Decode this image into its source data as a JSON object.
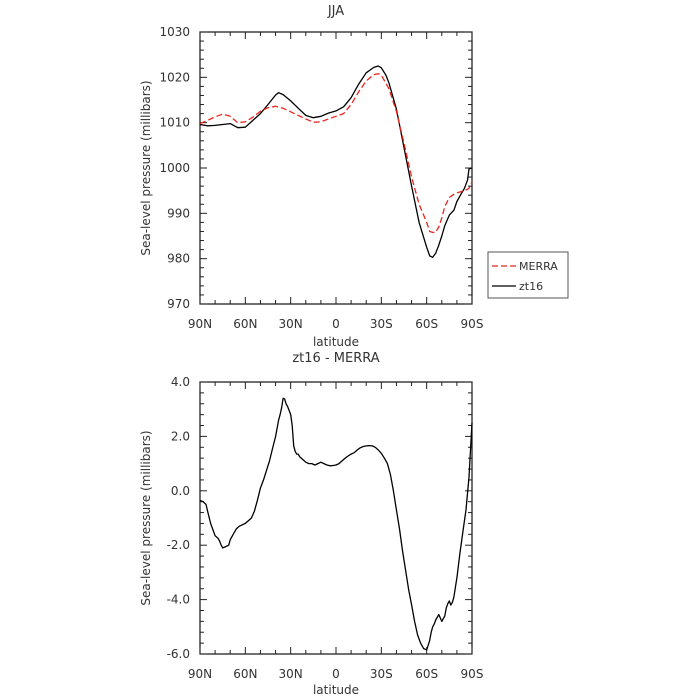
{
  "chart_data": [
    {
      "type": "line",
      "title": "JJA",
      "xlabel": "latitude",
      "ylabel": "Sea-level pressure (millibars)",
      "xlim": [
        90,
        -90
      ],
      "ylim": [
        970,
        1030
      ],
      "xticks": [
        90,
        60,
        30,
        0,
        -30,
        -60,
        -90
      ],
      "xtick_labels": [
        "90N",
        "60N",
        "30N",
        "0",
        "30S",
        "60S",
        "90S"
      ],
      "yticks": [
        970,
        980,
        990,
        1000,
        1010,
        1020,
        1030
      ],
      "ytick_labels": [
        "970",
        "980",
        "990",
        "1000",
        "1010",
        "1020",
        "1030"
      ],
      "legend": {
        "placement": "right",
        "entries": [
          "MERRA",
          "zt16"
        ]
      },
      "series": [
        {
          "name": "zt16",
          "color": "#000000",
          "dash": "solid",
          "x": [
            90,
            85,
            80,
            75,
            70,
            65,
            60,
            55,
            50,
            45,
            40,
            38,
            35,
            30,
            25,
            20,
            15,
            10,
            5,
            0,
            -5,
            -10,
            -15,
            -20,
            -25,
            -28,
            -30,
            -33,
            -35,
            -40,
            -45,
            -50,
            -55,
            -60,
            -62,
            -64,
            -66,
            -68,
            -70,
            -72,
            -75,
            -78,
            -80,
            -83,
            -85,
            -87,
            -88,
            -90
          ],
          "values": [
            1009.6,
            1009.3,
            1009.4,
            1009.6,
            1009.8,
            1008.9,
            1009.0,
            1010.5,
            1012.0,
            1014.0,
            1016.1,
            1016.6,
            1016.2,
            1014.8,
            1013.2,
            1011.6,
            1011.1,
            1011.4,
            1012.1,
            1012.6,
            1013.5,
            1015.5,
            1018.5,
            1021.0,
            1022.2,
            1022.5,
            1022.1,
            1020.5,
            1018.8,
            1013.0,
            1004.5,
            996.0,
            988.0,
            982.5,
            980.6,
            980.3,
            981.2,
            983.0,
            985.0,
            987.3,
            989.6,
            990.7,
            992.6,
            994.4,
            995.5,
            997.3,
            999.8,
            1000.0
          ]
        },
        {
          "name": "MERRA",
          "color": "#e8261c",
          "dash": "dashed",
          "x": [
            90,
            85,
            80,
            75,
            70,
            65,
            60,
            55,
            50,
            45,
            40,
            35,
            30,
            25,
            20,
            15,
            10,
            5,
            0,
            -5,
            -10,
            -15,
            -20,
            -25,
            -28,
            -30,
            -35,
            -40,
            -45,
            -50,
            -55,
            -60,
            -62,
            -64,
            -66,
            -68,
            -70,
            -72,
            -75,
            -78,
            -80,
            -85,
            -88,
            -90
          ],
          "values": [
            1009.8,
            1010.5,
            1011.3,
            1011.9,
            1011.4,
            1010.0,
            1010.2,
            1011.2,
            1012.5,
            1013.3,
            1013.6,
            1013.2,
            1012.4,
            1011.6,
            1010.8,
            1010.1,
            1010.2,
            1010.8,
            1011.4,
            1012.0,
            1014.0,
            1016.8,
            1019.2,
            1020.6,
            1020.8,
            1020.5,
            1017.5,
            1012.5,
            1005.5,
            998.0,
            992.0,
            988.0,
            986.0,
            985.8,
            985.8,
            987.0,
            989.0,
            991.5,
            993.5,
            994.2,
            994.5,
            995.0,
            995.5,
            997.0
          ]
        }
      ]
    },
    {
      "type": "line",
      "title": "zt16 - MERRA",
      "xlabel": "latitude",
      "ylabel": "Sea-level pressure (millibars)",
      "xlim": [
        90,
        -90
      ],
      "ylim": [
        -6,
        4
      ],
      "xticks": [
        90,
        60,
        30,
        0,
        -30,
        -60,
        -90
      ],
      "xtick_labels": [
        "90N",
        "60N",
        "30N",
        "0",
        "30S",
        "60S",
        "90S"
      ],
      "yticks": [
        -6,
        -4,
        -2,
        0,
        2,
        4
      ],
      "ytick_labels": [
        "-6.0",
        "-4.0",
        "-2.0",
        "0.0",
        "2.0",
        "4.0"
      ],
      "series": [
        {
          "color": "#000000",
          "dash": "solid",
          "x": [
            90,
            88,
            86,
            85,
            83,
            80,
            78,
            77,
            76,
            75,
            73,
            71,
            70,
            68,
            66,
            64,
            62,
            60,
            58,
            56,
            54,
            52,
            50,
            48,
            46,
            44,
            42,
            40,
            39,
            38,
            37,
            36,
            35,
            34,
            33,
            32,
            31,
            30,
            29,
            28,
            27,
            26,
            25,
            24,
            22,
            20,
            18,
            16,
            14,
            12,
            10,
            8,
            6,
            4,
            2,
            0,
            -2,
            -4,
            -6,
            -8,
            -10,
            -12,
            -14,
            -16,
            -18,
            -20,
            -22,
            -24,
            -26,
            -28,
            -30,
            -32,
            -34,
            -36,
            -38,
            -40,
            -42,
            -44,
            -46,
            -48,
            -50,
            -52,
            -54,
            -56,
            -58,
            -60,
            -62,
            -63,
            -64,
            -65,
            -66,
            -68,
            -70,
            -72,
            -73,
            -74,
            -75,
            -76,
            -77,
            -78,
            -80,
            -82,
            -84,
            -86,
            -88,
            -89,
            -90
          ],
          "values": [
            -0.35,
            -0.4,
            -0.5,
            -0.75,
            -1.2,
            -1.65,
            -1.75,
            -1.85,
            -2.0,
            -2.1,
            -2.05,
            -2.0,
            -1.8,
            -1.6,
            -1.4,
            -1.3,
            -1.25,
            -1.2,
            -1.1,
            -1.0,
            -0.75,
            -0.35,
            0.1,
            0.4,
            0.75,
            1.1,
            1.55,
            2.0,
            2.3,
            2.6,
            2.8,
            3.05,
            3.4,
            3.38,
            3.2,
            3.1,
            2.95,
            2.8,
            2.4,
            1.65,
            1.45,
            1.35,
            1.35,
            1.25,
            1.15,
            1.05,
            1.0,
            1.0,
            0.95,
            1.0,
            1.05,
            1.0,
            0.95,
            0.92,
            0.93,
            0.95,
            1.0,
            1.1,
            1.2,
            1.28,
            1.35,
            1.4,
            1.5,
            1.58,
            1.63,
            1.65,
            1.66,
            1.65,
            1.6,
            1.5,
            1.38,
            1.2,
            1.0,
            0.6,
            0.0,
            -0.7,
            -1.4,
            -2.2,
            -2.9,
            -3.6,
            -4.2,
            -4.8,
            -5.3,
            -5.6,
            -5.8,
            -5.85,
            -5.5,
            -5.2,
            -5.0,
            -4.9,
            -4.75,
            -4.55,
            -4.8,
            -4.6,
            -4.3,
            -4.15,
            -4.05,
            -4.2,
            -4.1,
            -3.9,
            -3.2,
            -2.3,
            -1.5,
            -0.7,
            0.5,
            1.5,
            2.5
          ]
        }
      ]
    }
  ]
}
